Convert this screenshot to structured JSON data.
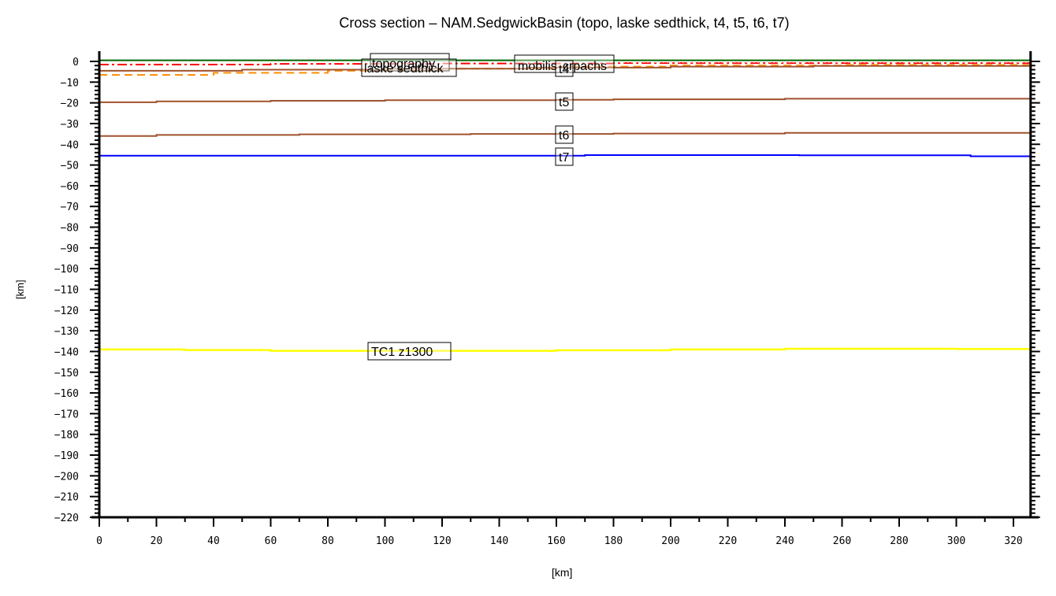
{
  "chart_data": {
    "type": "line",
    "title": "Cross section – NAM.SedgwickBasin (topo, laske sedthick, t4, t5, t6, t7)",
    "xlabel": "[km]",
    "ylabel": "[km]",
    "xlim": [
      0,
      326
    ],
    "ylim": [
      -220,
      5
    ],
    "grid": false,
    "legend": "inline labels on curves",
    "x_ticks": [
      0,
      20,
      40,
      60,
      80,
      100,
      120,
      140,
      160,
      180,
      200,
      220,
      240,
      260,
      280,
      300,
      320
    ],
    "y_ticks": [
      0,
      -10,
      -20,
      -30,
      -40,
      -50,
      -60,
      -70,
      -80,
      -90,
      -100,
      -110,
      -120,
      -130,
      -140,
      -150,
      -160,
      -170,
      -180,
      -190,
      -200,
      -210,
      -220
    ],
    "series": [
      {
        "name": "topography",
        "color": "#006400",
        "style": "solid",
        "x": [
          0,
          100,
          200,
          326
        ],
        "y": [
          0.5,
          0.5,
          0.5,
          0.5
        ]
      },
      {
        "name": "mobilis",
        "color": "#ff0000",
        "style": "dash-dot",
        "x": [
          0,
          60,
          120,
          180,
          240,
          326
        ],
        "y": [
          -1.5,
          -1.2,
          -1.0,
          -0.8,
          -0.8,
          -0.7
        ]
      },
      {
        "name": "laske sedthick",
        "color": "#ff8c00",
        "style": "dashed",
        "x": [
          0,
          40,
          80,
          120,
          160,
          200,
          260,
          326
        ],
        "y": [
          -6.5,
          -5.5,
          -4.5,
          -3.5,
          -2.5,
          -2.0,
          -1.7,
          -1.5
        ]
      },
      {
        "name": "t4",
        "color": "#a0522d",
        "style": "solid",
        "x": [
          0,
          50,
          100,
          150,
          200,
          250,
          326
        ],
        "y": [
          -4.5,
          -4.0,
          -3.5,
          -3.0,
          -2.5,
          -2.2,
          -2.0
        ]
      },
      {
        "name": "t5",
        "color": "#a0522d",
        "style": "solid",
        "x": [
          0,
          20,
          60,
          100,
          160,
          180,
          240,
          326
        ],
        "y": [
          -19.7,
          -19.3,
          -19.0,
          -18.7,
          -18.5,
          -18.3,
          -18.0,
          -17.8
        ]
      },
      {
        "name": "t6",
        "color": "#a0522d",
        "style": "solid",
        "x": [
          0,
          20,
          70,
          130,
          180,
          240,
          326
        ],
        "y": [
          -36.0,
          -35.5,
          -35.2,
          -35.0,
          -34.8,
          -34.5,
          -34.5
        ]
      },
      {
        "name": "t7",
        "color": "#0000ff",
        "style": "solid",
        "x": [
          0,
          160,
          170,
          245,
          305,
          326
        ],
        "y": [
          -45.5,
          -45.5,
          -45.2,
          -45.3,
          -45.8,
          -45.8
        ]
      },
      {
        "name": "TC1_z1300",
        "color": "#ffff00",
        "style": "solid",
        "x": [
          0,
          30,
          60,
          100,
          160,
          200,
          240,
          300,
          326
        ],
        "y": [
          -139.0,
          -139.3,
          -139.7,
          -139.7,
          -139.4,
          -139.0,
          -138.7,
          -138.8,
          -139.0
        ]
      }
    ],
    "labels": [
      {
        "text": "topography",
        "x": 103,
        "y": 0
      },
      {
        "text": "laske sedthick",
        "x": 103,
        "y": -2
      },
      {
        "text": "mobilis",
        "x": 155,
        "y": -1
      },
      {
        "text": "crpachs",
        "x": 170,
        "y": -1
      },
      {
        "text": "t4",
        "x": 163,
        "y": -2
      },
      {
        "text": "t5",
        "x": 163,
        "y": -19
      },
      {
        "text": "t6",
        "x": 163,
        "y": -35
      },
      {
        "text": "t7",
        "x": 163,
        "y": -46
      },
      {
        "text": "TC1_z1300",
        "x": 103,
        "y": -140
      }
    ]
  },
  "title": "Cross section – NAM.SedgwickBasin (topo, laske sedthick, t4, t5, t6, t7)",
  "xlabel": "[km]",
  "ylabel": "[km]"
}
